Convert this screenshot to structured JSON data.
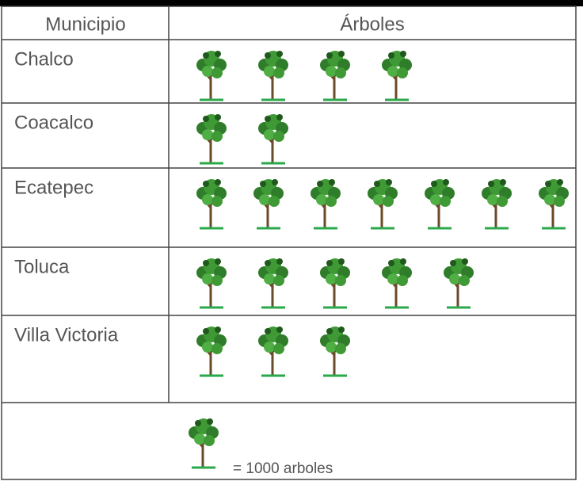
{
  "chart_data": {
    "type": "pictograph",
    "headers": [
      "Municipio",
      "Árboles"
    ],
    "categories": [
      "Chalco",
      "Coacalco",
      "Ecatepec",
      "Toluca",
      "Villa Victoria"
    ],
    "values": [
      4,
      2,
      7,
      5,
      3
    ],
    "legend": "= 1000 arboles"
  }
}
